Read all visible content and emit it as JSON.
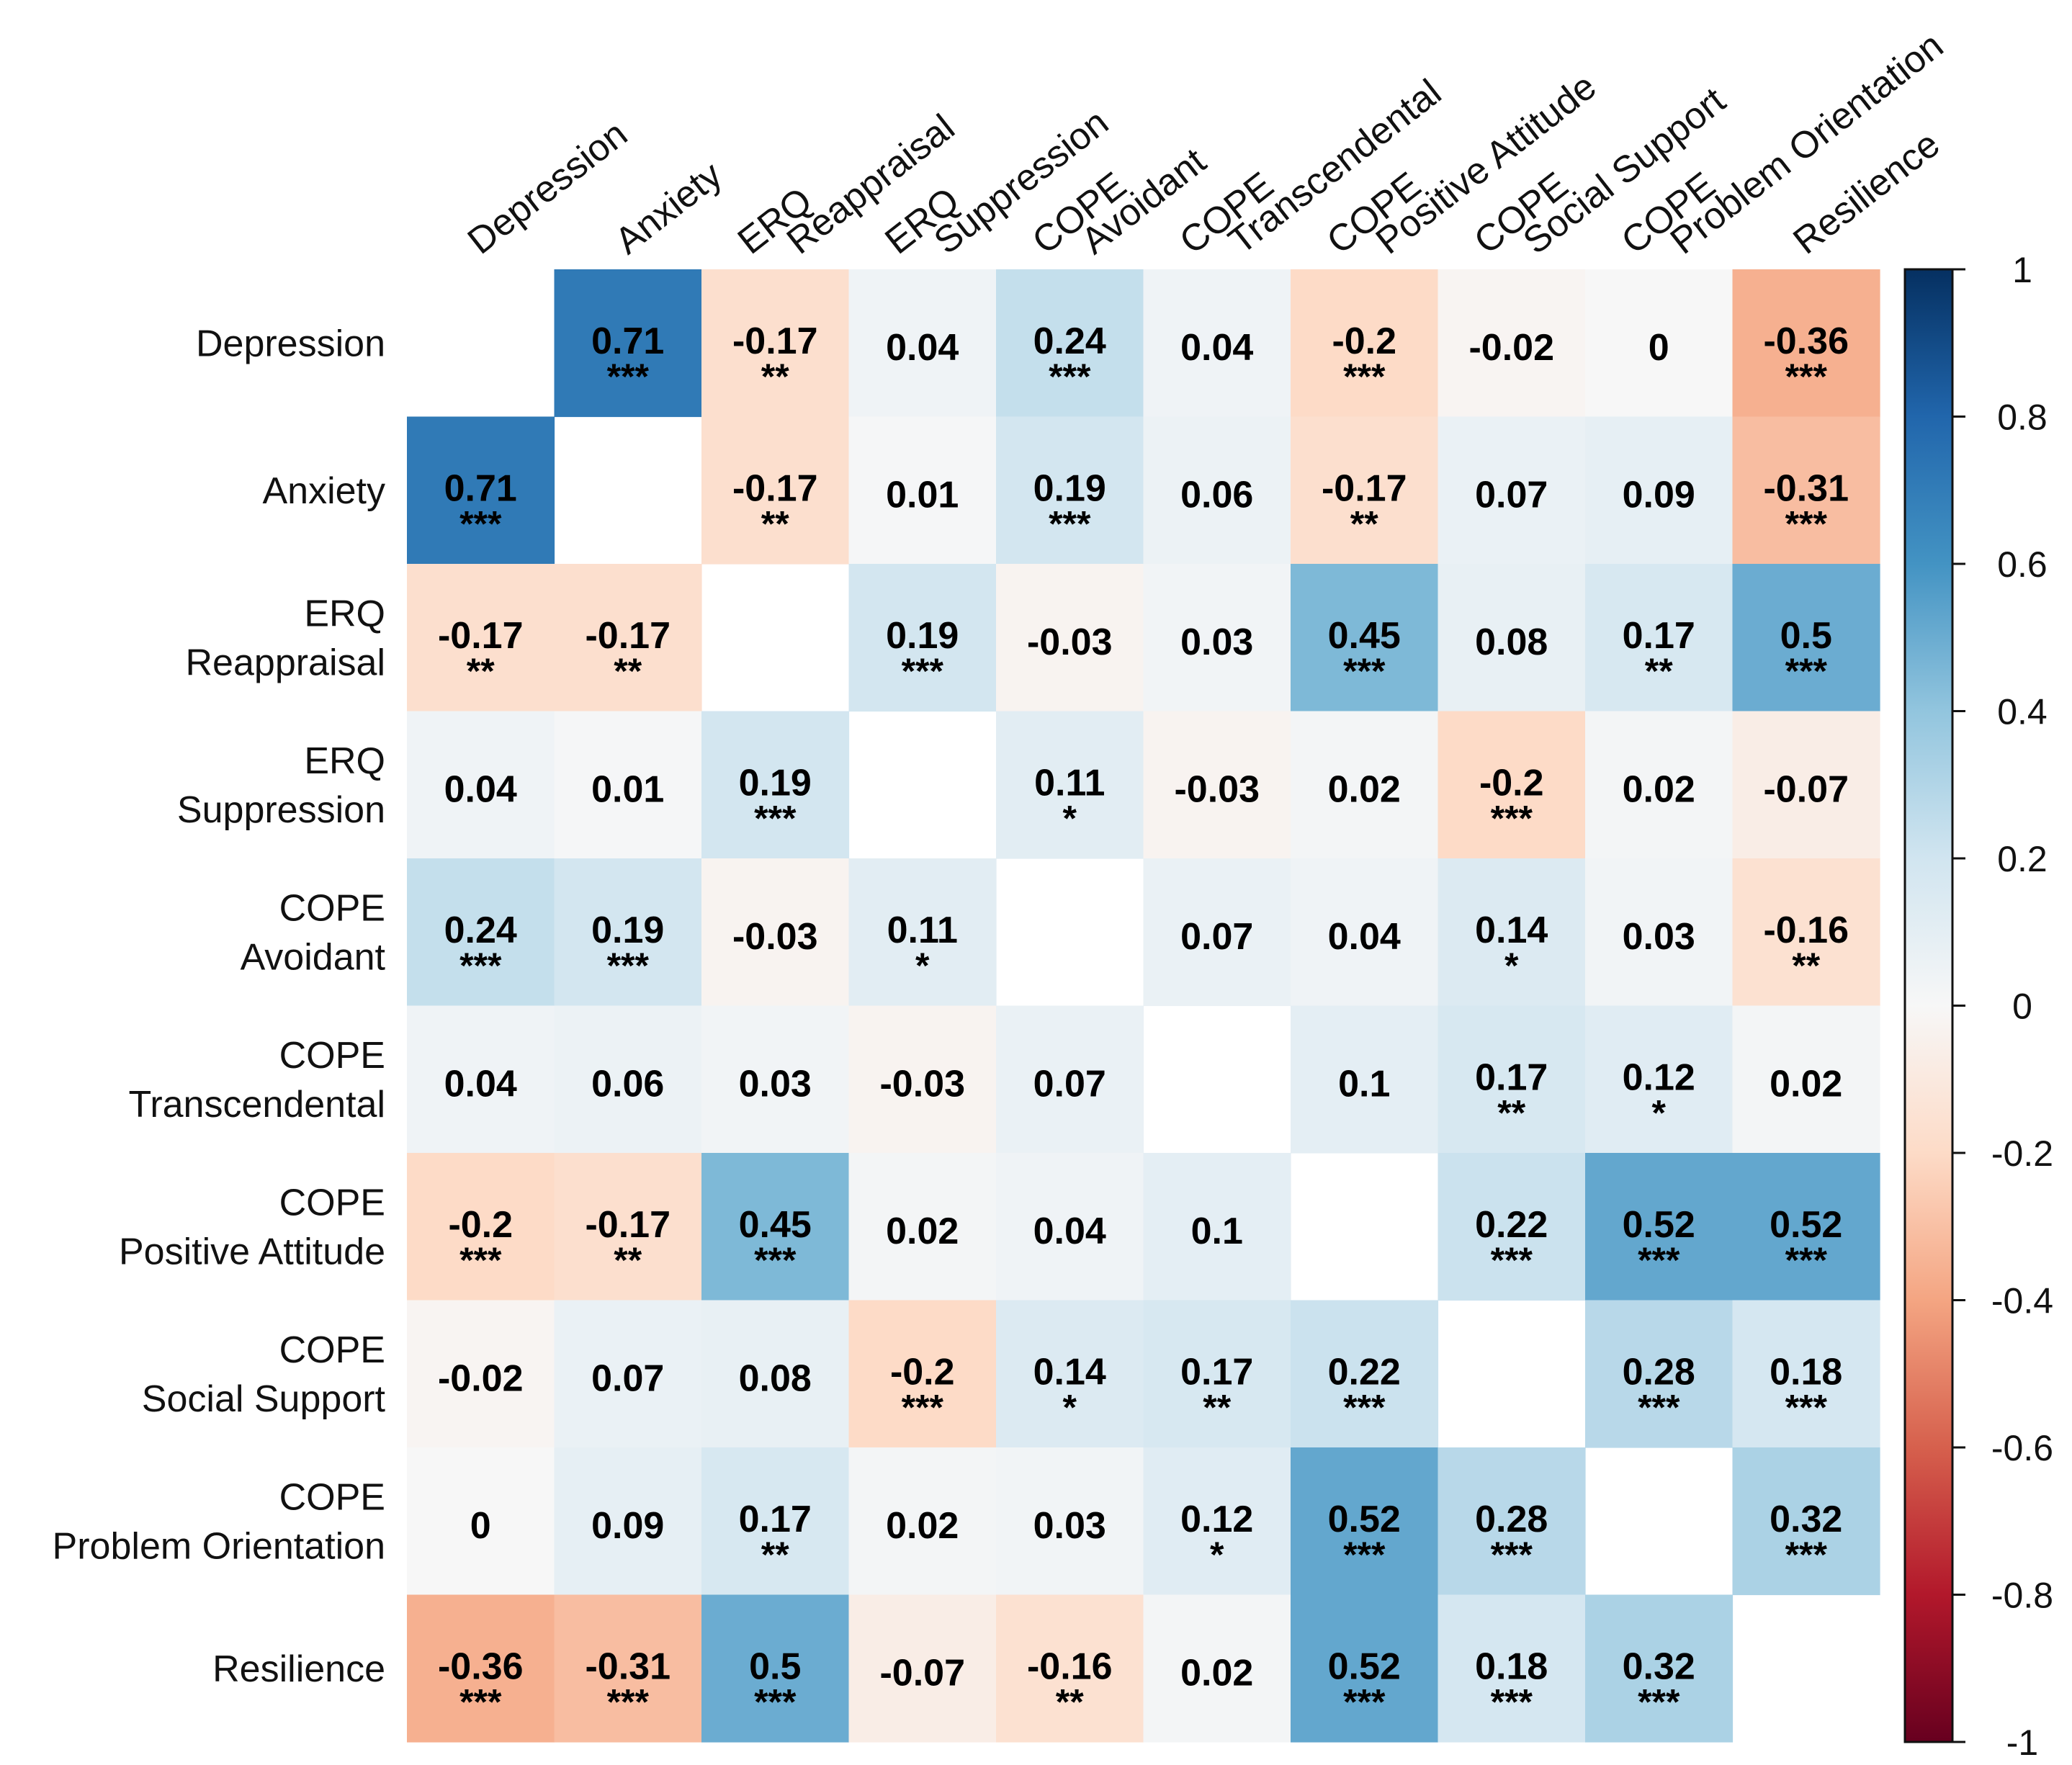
{
  "chart_data": {
    "type": "heatmap",
    "title": "",
    "variables": [
      [
        "Depression"
      ],
      [
        "Anxiety"
      ],
      [
        "ERQ",
        "Reappraisal"
      ],
      [
        "ERQ",
        "Suppression"
      ],
      [
        "COPE",
        "Avoidant"
      ],
      [
        "COPE",
        "Transcendental"
      ],
      [
        "COPE",
        "Positive Attitude"
      ],
      [
        "COPE",
        "Social Support"
      ],
      [
        "COPE",
        "Problem Orientation"
      ],
      [
        "Resilience"
      ]
    ],
    "matrix": [
      [
        null,
        0.71,
        -0.17,
        0.04,
        0.24,
        0.04,
        -0.2,
        -0.02,
        0,
        -0.36
      ],
      [
        0.71,
        null,
        -0.17,
        0.01,
        0.19,
        0.06,
        -0.17,
        0.07,
        0.09,
        -0.31
      ],
      [
        -0.17,
        -0.17,
        null,
        0.19,
        -0.03,
        0.03,
        0.45,
        0.08,
        0.17,
        0.5
      ],
      [
        0.04,
        0.01,
        0.19,
        null,
        0.11,
        -0.03,
        0.02,
        -0.2,
        0.02,
        -0.07
      ],
      [
        0.24,
        0.19,
        -0.03,
        0.11,
        null,
        0.07,
        0.04,
        0.14,
        0.03,
        -0.16
      ],
      [
        0.04,
        0.06,
        0.03,
        -0.03,
        0.07,
        null,
        0.1,
        0.17,
        0.12,
        0.02
      ],
      [
        -0.2,
        -0.17,
        0.45,
        0.02,
        0.04,
        0.1,
        null,
        0.22,
        0.52,
        0.52
      ],
      [
        -0.02,
        0.07,
        0.08,
        -0.2,
        0.14,
        0.17,
        0.22,
        null,
        0.28,
        0.18
      ],
      [
        0,
        0.09,
        0.17,
        0.02,
        0.03,
        0.12,
        0.52,
        0.28,
        null,
        0.32
      ],
      [
        -0.36,
        -0.31,
        0.5,
        -0.07,
        -0.16,
        0.02,
        0.52,
        0.18,
        0.32,
        null
      ]
    ],
    "significance": [
      [
        "",
        "***",
        "**",
        "",
        "***",
        "",
        "***",
        "",
        "",
        "***"
      ],
      [
        "***",
        "",
        "**",
        "",
        "***",
        "",
        "**",
        "",
        "",
        "***"
      ],
      [
        "**",
        "**",
        "",
        "***",
        "",
        "",
        "***",
        "",
        "**",
        "***"
      ],
      [
        "",
        "",
        "***",
        "",
        "*",
        "",
        "",
        "***",
        "",
        ""
      ],
      [
        "***",
        "***",
        "",
        "*",
        "",
        "",
        "",
        "*",
        "",
        "**"
      ],
      [
        "",
        "",
        "",
        "",
        "",
        "",
        "",
        "**",
        "*",
        ""
      ],
      [
        "***",
        "**",
        "***",
        "",
        "",
        "",
        "",
        "***",
        "***",
        "***"
      ],
      [
        "",
        "",
        "",
        "***",
        "*",
        "**",
        "***",
        "",
        "***",
        "***"
      ],
      [
        "",
        "",
        "**",
        "",
        "",
        "*",
        "***",
        "***",
        "",
        "***"
      ],
      [
        "***",
        "***",
        "***",
        "",
        "**",
        "",
        "***",
        "***",
        "***",
        ""
      ]
    ],
    "colorbar": {
      "range": [
        -1,
        1
      ],
      "ticks": [
        "1",
        "0.8",
        "0.6",
        "0.4",
        "0.2",
        "0",
        "-0.2",
        "-0.4",
        "-0.6",
        "-0.8",
        "-1"
      ],
      "tick_values": [
        1,
        0.8,
        0.6,
        0.4,
        0.2,
        0,
        -0.2,
        -0.4,
        -0.6,
        -0.8,
        -1
      ],
      "colormap": "RdBu",
      "stops": [
        {
          "value": -1,
          "color": "#67001f"
        },
        {
          "value": -0.8,
          "color": "#b2182b"
        },
        {
          "value": -0.6,
          "color": "#d6604d"
        },
        {
          "value": -0.4,
          "color": "#f4a582"
        },
        {
          "value": -0.2,
          "color": "#fddbc7"
        },
        {
          "value": 0,
          "color": "#f7f7f7"
        },
        {
          "value": 0.2,
          "color": "#d1e5f0"
        },
        {
          "value": 0.4,
          "color": "#92c5de"
        },
        {
          "value": 0.6,
          "color": "#4393c3"
        },
        {
          "value": 0.8,
          "color": "#2166ac"
        },
        {
          "value": 1,
          "color": "#053061"
        }
      ]
    }
  }
}
